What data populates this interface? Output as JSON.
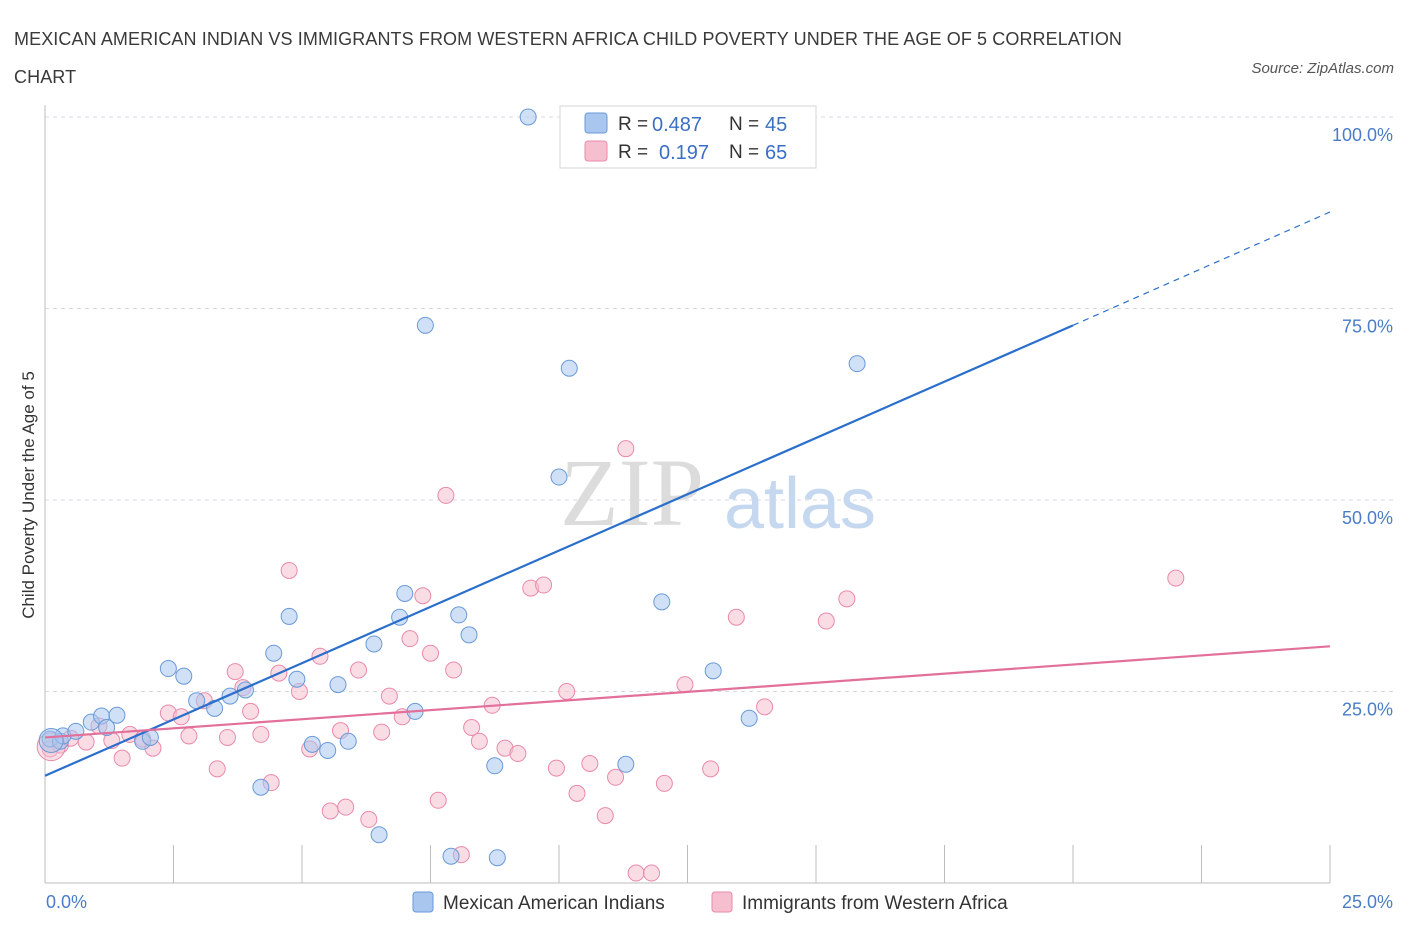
{
  "title": "MEXICAN AMERICAN INDIAN VS IMMIGRANTS FROM WESTERN AFRICA CHILD POVERTY UNDER THE AGE OF 5 CORRELATION CHART",
  "source": "Source: ZipAtlas.com",
  "watermark": {
    "zip": "ZIP",
    "atlas": "atlas"
  },
  "colors": {
    "blue_fill": "#a9c6ee",
    "blue_stroke": "#6a9ad8",
    "blue_line": "#2a6fcb",
    "pink_fill": "#f6bfd0",
    "pink_stroke": "#e98aaa",
    "pink_line": "#e2709a",
    "grid": "#d9d9e0",
    "axis_label": "#4a7cc7"
  },
  "legend": {
    "r_label": "R =",
    "n_label": "N =",
    "series1": {
      "r": "0.487",
      "n": "45"
    },
    "series2": {
      "r": "0.197",
      "n": "65"
    }
  },
  "chart_data": {
    "type": "scatter",
    "title": "MEXICAN AMERICAN INDIAN VS IMMIGRANTS FROM WESTERN AFRICA CHILD POVERTY UNDER THE AGE OF 5 CORRELATION CHART",
    "xlabel": "",
    "ylabel": "Child Poverty Under the Age of 5",
    "xlim": [
      0,
      25
    ],
    "ylim": [
      0,
      100
    ],
    "x_tick_labels": [
      "0.0%",
      "25.0%"
    ],
    "y_tick_labels": [
      "25.0%",
      "50.0%",
      "75.0%",
      "100.0%"
    ],
    "y_ticks": [
      25,
      50,
      75,
      100
    ],
    "grid": true,
    "legend_placement": "top-center",
    "series": [
      {
        "name": "Mexican American Indians",
        "color": "#a9c6ee",
        "trend": {
          "x": [
            0,
            20
          ],
          "y": [
            14,
            72.8
          ],
          "dashed_to": [
            25,
            87.6
          ]
        },
        "points": [
          [
            0.1,
            18.8
          ],
          [
            0.3,
            18.5
          ],
          [
            0.35,
            19.2
          ],
          [
            0.6,
            19.8
          ],
          [
            0.9,
            21
          ],
          [
            1.1,
            21.8
          ],
          [
            1.4,
            21.9
          ],
          [
            1.9,
            18.5
          ],
          [
            1.2,
            20.3
          ],
          [
            2.4,
            28
          ],
          [
            2.7,
            27
          ],
          [
            2.95,
            23.8
          ],
          [
            3.3,
            22.8
          ],
          [
            3.6,
            24.4
          ],
          [
            3.9,
            25.2
          ],
          [
            4.2,
            12.5
          ],
          [
            4.45,
            30
          ],
          [
            4.75,
            34.8
          ],
          [
            4.9,
            26.6
          ],
          [
            5.2,
            18.1
          ],
          [
            5.5,
            17.3
          ],
          [
            5.7,
            25.9
          ],
          [
            5.9,
            18.5
          ],
          [
            6.4,
            31.2
          ],
          [
            6.5,
            6.3
          ],
          [
            6.9,
            34.7
          ],
          [
            7.0,
            37.8
          ],
          [
            7.2,
            22.4
          ],
          [
            7.4,
            72.8
          ],
          [
            7.9,
            3.5
          ],
          [
            8.05,
            35
          ],
          [
            8.25,
            32.4
          ],
          [
            8.75,
            15.3
          ],
          [
            8.8,
            3.3
          ],
          [
            9.4,
            100
          ],
          [
            10.0,
            53
          ],
          [
            10.2,
            67.2
          ],
          [
            10.5,
            100
          ],
          [
            11.0,
            100
          ],
          [
            11.3,
            15.5
          ],
          [
            12.0,
            36.7
          ],
          [
            13.0,
            27.7
          ],
          [
            13.7,
            21.5
          ],
          [
            15.8,
            67.8
          ],
          [
            2.05,
            19
          ]
        ]
      },
      {
        "name": "Immigrants from Western Africa",
        "color": "#f6bfd0",
        "trend": {
          "x": [
            0,
            25
          ],
          "y": [
            19,
            30.9
          ]
        },
        "points": [
          [
            0.1,
            17.5
          ],
          [
            0.3,
            18
          ],
          [
            0.5,
            18.9
          ],
          [
            0.8,
            18.4
          ],
          [
            1.05,
            20.5
          ],
          [
            1.3,
            18.6
          ],
          [
            1.5,
            16.3
          ],
          [
            1.65,
            19.4
          ],
          [
            1.9,
            18.8
          ],
          [
            2.1,
            17.6
          ],
          [
            2.4,
            22.2
          ],
          [
            2.65,
            21.7
          ],
          [
            2.8,
            19.2
          ],
          [
            3.1,
            23.8
          ],
          [
            3.35,
            14.9
          ],
          [
            3.55,
            19
          ],
          [
            3.7,
            27.6
          ],
          [
            3.85,
            25.5
          ],
          [
            4.0,
            22.4
          ],
          [
            4.2,
            19.4
          ],
          [
            4.4,
            13.1
          ],
          [
            4.55,
            27.4
          ],
          [
            4.75,
            40.8
          ],
          [
            4.95,
            25
          ],
          [
            5.15,
            17.5
          ],
          [
            5.35,
            29.6
          ],
          [
            5.55,
            9.4
          ],
          [
            5.75,
            19.9
          ],
          [
            5.85,
            9.9
          ],
          [
            6.1,
            27.8
          ],
          [
            6.3,
            8.3
          ],
          [
            6.55,
            19.7
          ],
          [
            6.7,
            24.4
          ],
          [
            6.95,
            21.7
          ],
          [
            7.1,
            31.9
          ],
          [
            7.35,
            37.5
          ],
          [
            7.5,
            30
          ],
          [
            7.65,
            10.8
          ],
          [
            7.8,
            50.6
          ],
          [
            7.95,
            27.8
          ],
          [
            8.1,
            3.7
          ],
          [
            8.3,
            20.3
          ],
          [
            8.45,
            18.5
          ],
          [
            8.7,
            23.2
          ],
          [
            8.95,
            17.6
          ],
          [
            9.2,
            16.9
          ],
          [
            9.45,
            38.5
          ],
          [
            9.7,
            38.9
          ],
          [
            9.95,
            15
          ],
          [
            10.15,
            25
          ],
          [
            10.35,
            11.7
          ],
          [
            10.6,
            15.6
          ],
          [
            10.9,
            8.8
          ],
          [
            11.1,
            13.8
          ],
          [
            11.3,
            56.7
          ],
          [
            11.5,
            1.3
          ],
          [
            11.8,
            1.3
          ],
          [
            12.05,
            13
          ],
          [
            12.45,
            25.9
          ],
          [
            12.95,
            14.9
          ],
          [
            13.45,
            34.7
          ],
          [
            14.0,
            23
          ],
          [
            15.2,
            34.2
          ],
          [
            15.6,
            37.1
          ],
          [
            22.0,
            39.8
          ]
        ]
      }
    ]
  },
  "bottom_legend": {
    "series1": "Mexican American Indians",
    "series2": "Immigrants from Western Africa"
  }
}
